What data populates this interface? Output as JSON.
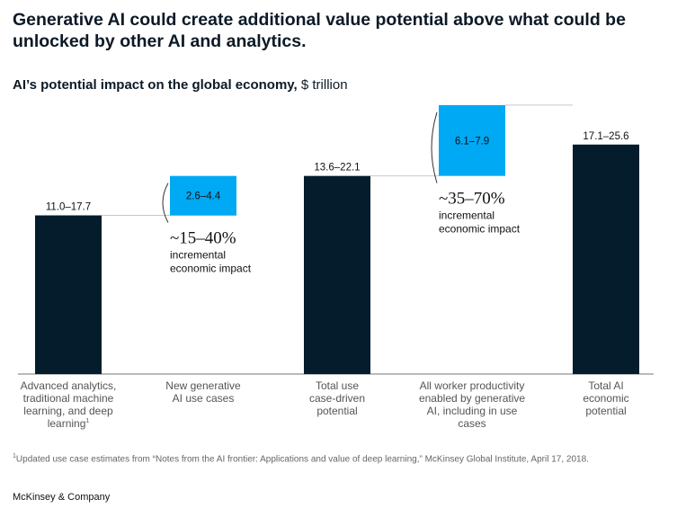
{
  "title": "Generative AI could create additional value potential above what could be unlocked by other AI and analytics.",
  "subtitle": {
    "bold": "AI’s potential impact on the global economy,",
    "unit": "$ trillion"
  },
  "chart_data": {
    "type": "waterfall",
    "unit": "$ trillion",
    "bars": [
      {
        "label_lines": [
          "Advanced analytics,",
          "traditional machine",
          "learning, and deep",
          "learning"
        ],
        "footnote_mark": "1",
        "range": [
          11.0,
          17.7
        ],
        "value_label": "11.0–17.7",
        "base": 0,
        "kind": "total"
      },
      {
        "label_lines": [
          "New generative",
          "AI use cases"
        ],
        "range": [
          2.6,
          4.4
        ],
        "value_label": "2.6–4.4",
        "kind": "increment"
      },
      {
        "label_lines": [
          "Total use",
          "case-driven",
          "potential"
        ],
        "range": [
          13.6,
          22.1
        ],
        "value_label": "13.6–22.1",
        "base": 0,
        "kind": "total"
      },
      {
        "label_lines": [
          "All worker productivity",
          "enabled by generative",
          "AI, including in use",
          "cases"
        ],
        "range": [
          6.1,
          7.9
        ],
        "value_label": "6.1–7.9",
        "kind": "increment"
      },
      {
        "label_lines": [
          "Total AI",
          "economic",
          "potential"
        ],
        "range": [
          17.1,
          25.6
        ],
        "value_label": "17.1–25.6",
        "base": 0,
        "kind": "total"
      }
    ],
    "annotations": [
      {
        "big": "~15–40%",
        "lines": [
          "incremental",
          "economic impact"
        ]
      },
      {
        "big": "~35–70%",
        "lines": [
          "incremental",
          "economic impact"
        ]
      }
    ],
    "colors": {
      "total": "#051c2c",
      "increment": "#00a9f4",
      "connector": "#c8c8c8",
      "axis": "#777777",
      "text": "#111111",
      "label": "#555555"
    }
  },
  "footnote": {
    "mark": "1",
    "text": "Updated use case estimates from “Notes from the AI frontier: Applications and value of deep learning,” McKinsey Global Institute, April 17, 2018."
  },
  "brand": "McKinsey & Company"
}
